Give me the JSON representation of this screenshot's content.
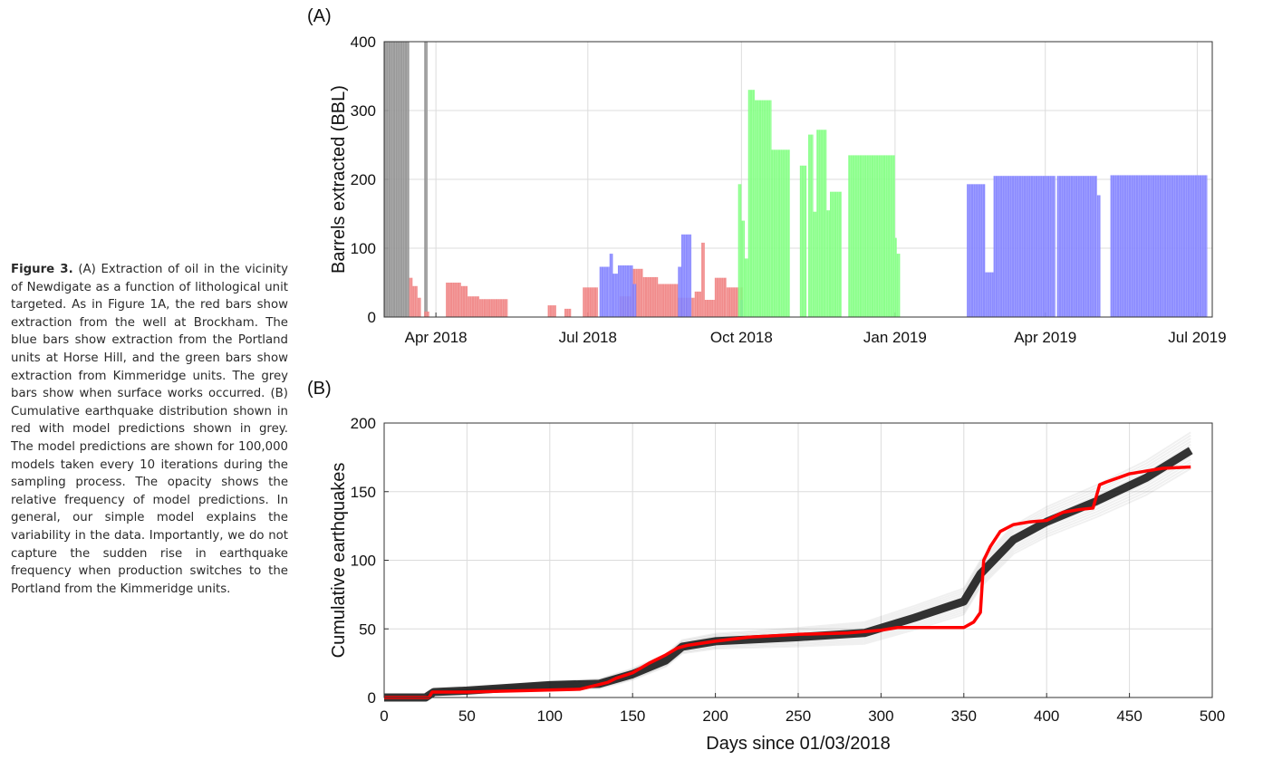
{
  "caption": {
    "label": "Figure 3.",
    "text": "(A) Extraction of oil in the vicinity of Newdigate as a function of lithological unit targeted. As in Figure 1A, the red bars show extraction from the well at Brockham. The blue bars show extraction from the Portland units at Horse Hill, and the green bars show extraction from Kimmeridge units. The grey bars show when surface works occurred. (B) Cumulative earthquake distribution shown in red with model predictions shown in grey. The model predictions are shown for 100,000 models taken every 10 iterations during the sampling process. The opacity shows the relative frequency of model predictions. In general, our simple model explains the variability in the data. Importantly, we do not capture the sudden rise in earthquake frequency when production switches to the Portland from the Kimmeridge units."
  },
  "panels": {
    "a_label": "(A)",
    "b_label": "(B)"
  },
  "chart_data": [
    {
      "type": "bar",
      "panel": "(A)",
      "title": "",
      "xlabel": "",
      "ylabel": "Barrels extracted (BBL)",
      "ylim": [
        0,
        400
      ],
      "xlim": [
        "2018-03-01",
        "2019-07-10"
      ],
      "x_ticks": [
        "Apr 2018",
        "Jul 2018",
        "Oct 2018",
        "Jan 2019",
        "Apr 2019",
        "Jul 2019"
      ],
      "x_tick_dates": [
        "2018-04-01",
        "2018-07-01",
        "2018-10-01",
        "2019-01-01",
        "2019-04-01",
        "2019-07-01"
      ],
      "y_ticks": [
        0,
        100,
        200,
        300,
        400
      ],
      "grid": true,
      "colors": {
        "grey": "#8f8f8f",
        "red": "#f08080",
        "blue": "#8080ff",
        "green": "#80ff80"
      },
      "series": [
        {
          "color": "grey",
          "bars": [
            [
              "2018-03-01",
              "2018-03-16",
              400
            ],
            [
              "2018-03-25",
              "2018-03-27",
              400
            ]
          ]
        },
        {
          "color": "red",
          "bars": [
            [
              "2018-03-16",
              "2018-03-18",
              57
            ],
            [
              "2018-03-18",
              "2018-03-21",
              45
            ],
            [
              "2018-03-21",
              "2018-03-23",
              28
            ],
            [
              "2018-03-25",
              "2018-03-28",
              8
            ],
            [
              "2018-04-07",
              "2018-04-16",
              50
            ],
            [
              "2018-04-16",
              "2018-04-20",
              45
            ],
            [
              "2018-04-20",
              "2018-04-27",
              30
            ],
            [
              "2018-04-27",
              "2018-05-14",
              26
            ],
            [
              "2018-06-07",
              "2018-06-12",
              17
            ],
            [
              "2018-06-17",
              "2018-06-21",
              12
            ],
            [
              "2018-06-28",
              "2018-07-07",
              43
            ],
            [
              "2018-07-20",
              "2018-07-27",
              30
            ],
            [
              "2018-07-27",
              "2018-08-03",
              70
            ],
            [
              "2018-08-03",
              "2018-08-12",
              58
            ],
            [
              "2018-08-12",
              "2018-08-24",
              48
            ],
            [
              "2018-08-24",
              "2018-09-03",
              28
            ],
            [
              "2018-09-03",
              "2018-09-07",
              37
            ],
            [
              "2018-09-07",
              "2018-09-09",
              108
            ],
            [
              "2018-09-09",
              "2018-09-15",
              25
            ],
            [
              "2018-09-15",
              "2018-09-22",
              57
            ],
            [
              "2018-09-22",
              "2018-10-02",
              43
            ]
          ]
        },
        {
          "color": "blue",
          "bars": [
            [
              "2018-07-08",
              "2018-07-14",
              73
            ],
            [
              "2018-07-14",
              "2018-07-16",
              92
            ],
            [
              "2018-07-16",
              "2018-07-19",
              63
            ],
            [
              "2018-07-19",
              "2018-07-28",
              75
            ],
            [
              "2018-07-28",
              "2018-07-30",
              48
            ],
            [
              "2018-08-24",
              "2018-08-26",
              73
            ],
            [
              "2018-08-26",
              "2018-09-01",
              120
            ],
            [
              "2018-09-30",
              "2018-10-02",
              25
            ],
            [
              "2019-02-13",
              "2019-02-24",
              193
            ],
            [
              "2019-02-24",
              "2019-03-01",
              65
            ],
            [
              "2019-03-01",
              "2019-04-07",
              205
            ],
            [
              "2019-04-08",
              "2019-05-02",
              205
            ],
            [
              "2019-05-02",
              "2019-05-04",
              177
            ],
            [
              "2019-05-10",
              "2019-07-07",
              206
            ]
          ]
        },
        {
          "color": "green",
          "bars": [
            [
              "2018-09-29",
              "2018-10-01",
              193
            ],
            [
              "2018-10-01",
              "2018-10-03",
              140
            ],
            [
              "2018-10-03",
              "2018-10-05",
              85
            ],
            [
              "2018-10-05",
              "2018-10-09",
              330
            ],
            [
              "2018-10-09",
              "2018-10-19",
              315
            ],
            [
              "2018-10-19",
              "2018-10-30",
              243
            ],
            [
              "2018-11-05",
              "2018-11-09",
              220
            ],
            [
              "2018-11-10",
              "2018-11-13",
              265
            ],
            [
              "2018-11-13",
              "2018-11-15",
              153
            ],
            [
              "2018-11-15",
              "2018-11-21",
              272
            ],
            [
              "2018-11-21",
              "2018-11-23",
              155
            ],
            [
              "2018-11-23",
              "2018-11-30",
              182
            ],
            [
              "2018-12-04",
              "2019-01-01",
              235
            ],
            [
              "2019-01-01",
              "2019-01-02",
              115
            ],
            [
              "2019-01-02",
              "2019-01-04",
              92
            ]
          ]
        }
      ]
    },
    {
      "type": "line",
      "panel": "(B)",
      "title": "",
      "xlabel": "Days since 01/03/2018",
      "ylabel": "Cumulative earthquakes",
      "xlim": [
        0,
        500
      ],
      "ylim": [
        0,
        200
      ],
      "x_ticks": [
        0,
        50,
        100,
        150,
        200,
        250,
        300,
        350,
        400,
        450,
        500
      ],
      "y_ticks": [
        0,
        50,
        100,
        150,
        200
      ],
      "grid": true,
      "series": [
        {
          "color": "#ff0000",
          "x": [
            0,
            27,
            29,
            50,
            118,
            135,
            140,
            150,
            160,
            170,
            177,
            183,
            200,
            220,
            250,
            280,
            300,
            310,
            350,
            356,
            360,
            362,
            366,
            372,
            380,
            390,
            400,
            410,
            420,
            428,
            432,
            436,
            450,
            470,
            487
          ],
          "y": [
            0,
            0,
            4,
            4,
            6,
            11,
            14,
            18,
            25,
            31,
            36,
            38,
            41,
            44,
            46,
            47,
            49,
            51,
            51,
            55,
            62,
            100,
            110,
            121,
            126,
            128,
            129,
            135,
            137,
            138,
            155,
            157,
            163,
            167,
            168
          ]
        },
        {
          "color": "#111111",
          "x": [
            0,
            25,
            30,
            50,
            100,
            130,
            150,
            170,
            180,
            200,
            250,
            290,
            320,
            350,
            360,
            380,
            400,
            430,
            460,
            487
          ],
          "y": [
            0,
            0,
            4,
            5,
            9,
            10,
            17,
            27,
            37,
            41,
            44,
            47,
            58,
            70,
            90,
            115,
            128,
            143,
            160,
            180
          ]
        }
      ]
    }
  ]
}
